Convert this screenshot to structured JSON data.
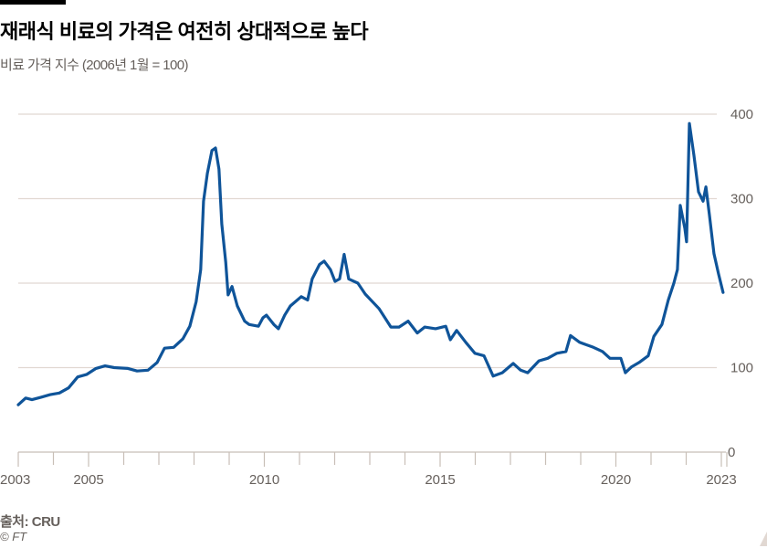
{
  "header": {
    "title": "재래식 비료의 가격은 여전히 상대적으로 높다",
    "subtitle": "비료 가격 지수 (2006년 1월 = 100)"
  },
  "footer": {
    "source": "출처: CRU",
    "credit": "© FT"
  },
  "colors": {
    "line": "#0f5499",
    "grid": "#e1d8d2",
    "axis_text": "#66605c"
  },
  "chart_data": {
    "type": "line",
    "title": "재래식 비료의 가격은 여전히 상대적으로 높다",
    "subtitle": "비료 가격 지수 (2006년 1월 = 100)",
    "xlabel": "",
    "ylabel": "",
    "xlim": [
      2003,
      2023.1
    ],
    "ylim": [
      0,
      400
    ],
    "x_ticks": [
      "2003",
      "2005",
      "2010",
      "2015",
      "2020",
      "2023"
    ],
    "y_ticks": [
      "0",
      "100",
      "200",
      "300",
      "400"
    ],
    "grid": true,
    "y_axis_side": "right",
    "series": [
      {
        "x": [
          2003.0,
          2003.21,
          2003.39,
          2003.65,
          2003.91,
          2004.17,
          2004.43,
          2004.69,
          2004.95,
          2005.21,
          2005.47,
          2005.73,
          2006.12,
          2006.38,
          2006.69,
          2006.95,
          2007.16,
          2007.42,
          2007.68,
          2007.88,
          2008.06,
          2008.19,
          2008.27,
          2008.38,
          2008.51,
          2008.61,
          2008.71,
          2008.79,
          2008.9,
          2008.97,
          2009.08,
          2009.23,
          2009.44,
          2009.57,
          2009.83,
          2009.96,
          2010.06,
          2010.27,
          2010.4,
          2010.58,
          2010.74,
          2011.05,
          2011.23,
          2011.36,
          2011.57,
          2011.7,
          2011.88,
          2012.01,
          2012.14,
          2012.27,
          2012.4,
          2012.66,
          2012.87,
          2013.26,
          2013.6,
          2013.83,
          2014.09,
          2014.35,
          2014.56,
          2014.87,
          2015.16,
          2015.29,
          2015.47,
          2015.73,
          2015.99,
          2016.25,
          2016.51,
          2016.77,
          2017.08,
          2017.29,
          2017.49,
          2017.81,
          2018.06,
          2018.32,
          2018.58,
          2018.71,
          2018.97,
          2019.16,
          2019.36,
          2019.62,
          2019.83,
          2020.14,
          2020.27,
          2020.45,
          2020.66,
          2020.92,
          2021.08,
          2021.31,
          2021.49,
          2021.65,
          2021.75,
          2021.83,
          2021.96,
          2022.01,
          2022.09,
          2022.22,
          2022.35,
          2022.48,
          2022.56,
          2022.66,
          2022.79,
          2022.92,
          2023.05
        ],
        "values": [
          56,
          64,
          62,
          65,
          68,
          70,
          76,
          89,
          92,
          99,
          102,
          100,
          99,
          96,
          97,
          106,
          123,
          124,
          134,
          149,
          178,
          216,
          297,
          330,
          357,
          360,
          335,
          270,
          225,
          186,
          196,
          173,
          155,
          151,
          149,
          159,
          162,
          151,
          146,
          162,
          173,
          184,
          180,
          205,
          222,
          226,
          216,
          202,
          205,
          234,
          205,
          200,
          187,
          170,
          148,
          148,
          155,
          141,
          148,
          146,
          149,
          133,
          144,
          130,
          117,
          114,
          90,
          94,
          105,
          97,
          94,
          108,
          111,
          117,
          119,
          138,
          130,
          127,
          124,
          119,
          111,
          111,
          94,
          101,
          106,
          114,
          137,
          151,
          180,
          200,
          216,
          292,
          265,
          249,
          389,
          351,
          308,
          297,
          314,
          281,
          235,
          211,
          189
        ]
      }
    ]
  }
}
